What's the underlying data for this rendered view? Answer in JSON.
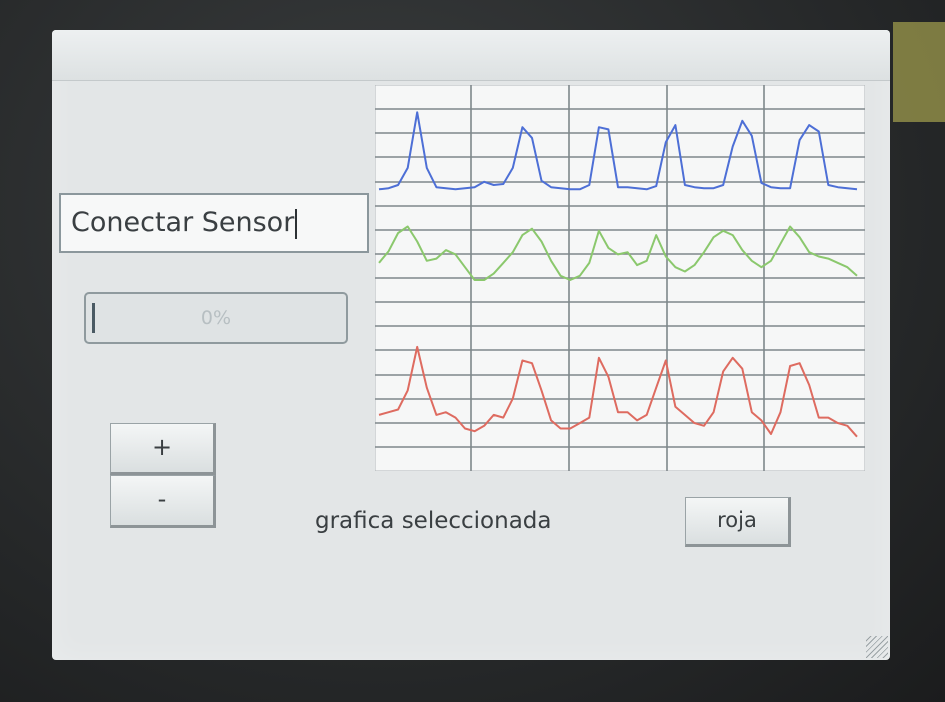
{
  "sensor_field": {
    "value": "Conectar Sensor"
  },
  "progress": {
    "value": 0,
    "label": "0%"
  },
  "buttons": {
    "plus": "+",
    "minus": "-",
    "selected": "roja"
  },
  "selected_label": "grafica seleccionada",
  "chart_data": {
    "type": "line",
    "grid": true,
    "xlim": [
      0,
      100
    ],
    "x": [
      0,
      2,
      4,
      6,
      8,
      10,
      12,
      14,
      16,
      18,
      20,
      22,
      24,
      26,
      28,
      30,
      32,
      34,
      36,
      38,
      40,
      42,
      44,
      46,
      48,
      50,
      52,
      54,
      56,
      58,
      60,
      62,
      64,
      66,
      68,
      70,
      72,
      74,
      76,
      78,
      80,
      82,
      84,
      86,
      88,
      90,
      92,
      94,
      96,
      98,
      100
    ],
    "series": [
      {
        "color": "#4d6fd6",
        "values": [
          10,
          11,
          14,
          30,
          82,
          30,
          12,
          11,
          10,
          11,
          12,
          17,
          14,
          15,
          30,
          68,
          58,
          18,
          12,
          11,
          10,
          10,
          14,
          68,
          66,
          12,
          12,
          11,
          10,
          13,
          54,
          70,
          14,
          12,
          11,
          11,
          14,
          50,
          74,
          60,
          16,
          12,
          11,
          11,
          56,
          70,
          64,
          14,
          12,
          11,
          10
        ]
      },
      {
        "color": "#8bc86d",
        "values": [
          44,
          55,
          72,
          78,
          64,
          46,
          48,
          56,
          52,
          40,
          28,
          28,
          34,
          44,
          54,
          70,
          76,
          64,
          46,
          32,
          28,
          32,
          44,
          74,
          58,
          52,
          54,
          42,
          46,
          70,
          50,
          40,
          36,
          42,
          54,
          68,
          74,
          70,
          56,
          46,
          40,
          46,
          62,
          78,
          68,
          54,
          50,
          48,
          44,
          40,
          32
        ]
      },
      {
        "color": "#de6b60",
        "values": [
          28,
          30,
          32,
          46,
          78,
          48,
          28,
          30,
          26,
          18,
          16,
          20,
          28,
          26,
          40,
          68,
          66,
          46,
          24,
          18,
          18,
          22,
          26,
          70,
          56,
          30,
          30,
          24,
          28,
          48,
          68,
          34,
          28,
          22,
          20,
          30,
          60,
          70,
          62,
          30,
          24,
          14,
          30,
          64,
          66,
          50,
          26,
          26,
          22,
          20,
          12
        ]
      }
    ]
  }
}
